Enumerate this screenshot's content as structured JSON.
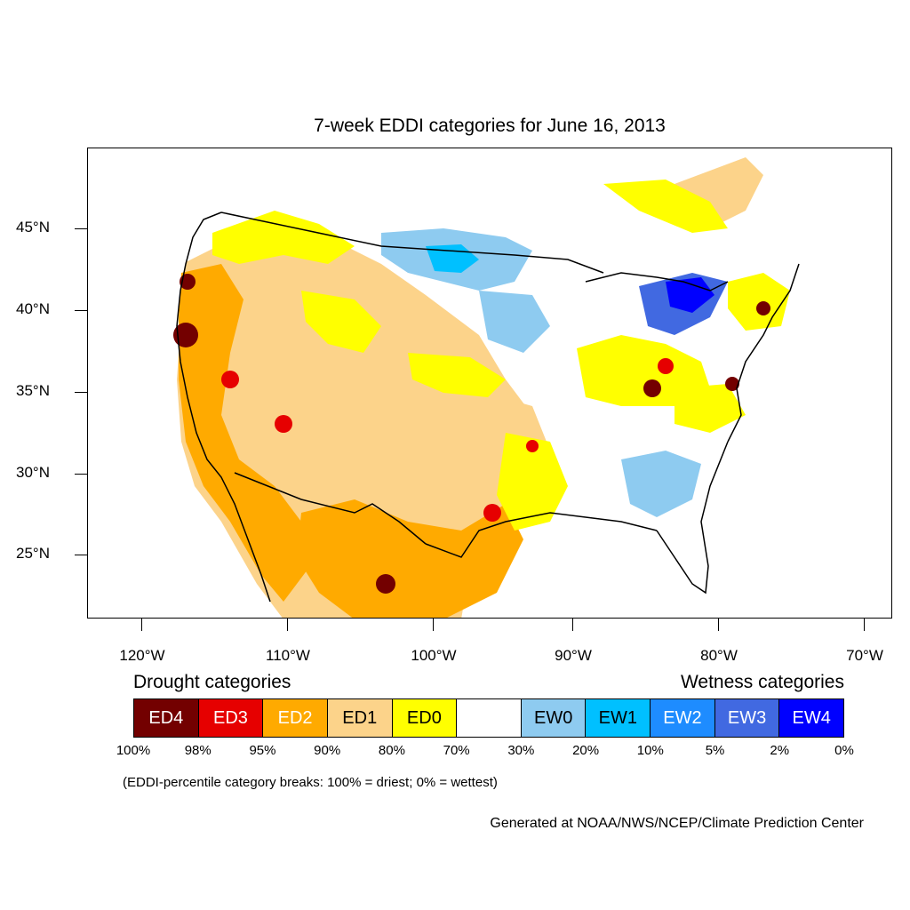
{
  "title": "7-week EDDI categories for June 16, 2013",
  "lat_labels": [
    "45°N",
    "40°N",
    "35°N",
    "30°N",
    "25°N"
  ],
  "lon_labels": [
    "120°W",
    "110°W",
    "100°W",
    "90°W",
    "80°W",
    "70°W"
  ],
  "legend": {
    "drought_heading": "Drought categories",
    "wetness_heading": "Wetness categories",
    "categories": [
      {
        "label": "ED4",
        "color": "#730000",
        "text_color": "#ffffff"
      },
      {
        "label": "ED3",
        "color": "#e60000",
        "text_color": "#ffffff"
      },
      {
        "label": "ED2",
        "color": "#ffaa00",
        "text_color": "#ffffff"
      },
      {
        "label": "ED1",
        "color": "#fcd38a",
        "text_color": "#000000"
      },
      {
        "label": "ED0",
        "color": "#ffff00",
        "text_color": "#000000"
      },
      {
        "label": "",
        "color": "#ffffff",
        "text_color": "#000000"
      },
      {
        "label": "EW0",
        "color": "#8ecbf0",
        "text_color": "#000000"
      },
      {
        "label": "EW1",
        "color": "#00c0ff",
        "text_color": "#000000"
      },
      {
        "label": "EW2",
        "color": "#1e8cff",
        "text_color": "#ffffff"
      },
      {
        "label": "EW3",
        "color": "#4169e1",
        "text_color": "#ffffff"
      },
      {
        "label": "EW4",
        "color": "#0000ff",
        "text_color": "#ffffff"
      }
    ],
    "breaks": [
      "100%",
      "98%",
      "95%",
      "90%",
      "80%",
      "70%",
      "30%",
      "20%",
      "10%",
      "5%",
      "2%",
      "0%"
    ]
  },
  "note": "(EDDI-percentile category breaks: 100% = driest; 0% = wettest)",
  "credit": "Generated at NOAA/NWS/NCEP/Climate Prediction Center"
}
